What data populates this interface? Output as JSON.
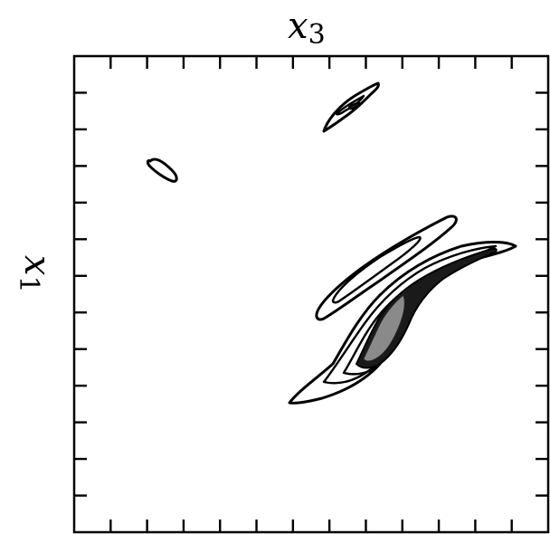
{
  "chart_data": {
    "type": "contour",
    "title": "",
    "xlabel": {
      "base": "x",
      "sub": "3"
    },
    "ylabel": {
      "base": "x",
      "sub": "1"
    },
    "grid": false,
    "legend": "none",
    "tick_labels": [],
    "ticks": {
      "top": 12,
      "bottom": 12,
      "left": 12,
      "right": 12
    },
    "colors": {
      "line": "#000000",
      "dense_fill": "#1a1a1a",
      "core_fill": "#8a8a8a",
      "background": "#ffffff"
    }
  }
}
